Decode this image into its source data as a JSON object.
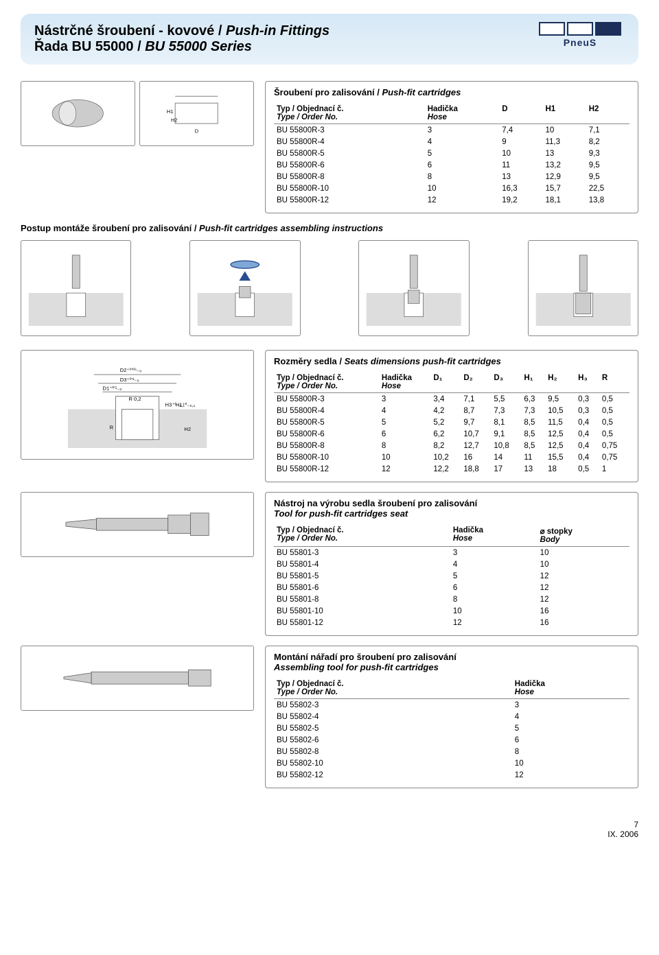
{
  "header": {
    "title_line1_cz": "Nástrčné šroubení - kovové / ",
    "title_line1_en": "Push-in Fittings",
    "title_line2_cz": "Řada BU 55000 / ",
    "title_line2_en": "BU 55000 Series",
    "logo_text": "PneuS"
  },
  "table1": {
    "title_cz": "Šroubení pro zalisování / ",
    "title_en": "Push-fit cartridges",
    "col_type_cz": "Typ / Objednací č.",
    "col_type_en": "Type / Order No.",
    "col_hose_cz": "Hadička",
    "col_hose_en": "Hose",
    "col_d": "D",
    "col_h1": "H1",
    "col_h2": "H2",
    "rows": [
      [
        "BU 55800R-3",
        "3",
        "7,4",
        "10",
        "7,1"
      ],
      [
        "BU 55800R-4",
        "4",
        "9",
        "11,3",
        "8,2"
      ],
      [
        "BU 55800R-5",
        "5",
        "10",
        "13",
        "9,3"
      ],
      [
        "BU 55800R-6",
        "6",
        "11",
        "13,2",
        "9,5"
      ],
      [
        "BU 55800R-8",
        "8",
        "13",
        "12,9",
        "9,5"
      ],
      [
        "BU 55800R-10",
        "10",
        "16,3",
        "15,7",
        "22,5"
      ],
      [
        "BU 55800R-12",
        "12",
        "19,2",
        "18,1",
        "13,8"
      ]
    ]
  },
  "assembly_title_cz": "Postup montáže šroubení pro zalisování / ",
  "assembly_title_en": "Push-fit cartridges assembling instructions",
  "table2": {
    "title_cz": "Rozměry sedla / ",
    "title_en": "Seats dimensions push-fit cartridges",
    "col_type_cz": "Typ / Objednací č.",
    "col_type_en": "Type / Order No.",
    "col_hose_cz": "Hadička",
    "col_hose_en": "Hose",
    "col_d1": "D₁",
    "col_d2": "D₂",
    "col_d3": "D₃",
    "col_h1": "H₁",
    "col_h2": "H₂",
    "col_h3": "H₃",
    "col_r": "R",
    "rows": [
      [
        "BU 55800R-3",
        "3",
        "3,4",
        "7,1",
        "5,5",
        "6,3",
        "9,5",
        "0,3",
        "0,5"
      ],
      [
        "BU 55800R-4",
        "4",
        "4,2",
        "8,7",
        "7,3",
        "7,3",
        "10,5",
        "0,3",
        "0,5"
      ],
      [
        "BU 55800R-5",
        "5",
        "5,2",
        "9,7",
        "8,1",
        "8,5",
        "11,5",
        "0,4",
        "0,5"
      ],
      [
        "BU 55800R-6",
        "6",
        "6,2",
        "10,7",
        "9,1",
        "8,5",
        "12,5",
        "0,4",
        "0,5"
      ],
      [
        "BU 55800R-8",
        "8",
        "8,2",
        "12,7",
        "10,8",
        "8,5",
        "12,5",
        "0,4",
        "0,75"
      ],
      [
        "BU 55800R-10",
        "10",
        "10,2",
        "16",
        "14",
        "11",
        "15,5",
        "0,4",
        "0,75"
      ],
      [
        "BU 55800R-12",
        "12",
        "12,2",
        "18,8",
        "17",
        "13",
        "18",
        "0,5",
        "1"
      ]
    ]
  },
  "seat_diagram": {
    "d2_tol": "D2⁺⁰'⁰⁵₋₀",
    "d3_tol": "D3⁺⁰'¹₋₀",
    "d1_tol": "D1⁺⁰'¹₋₀",
    "r02": "R 0,2",
    "h3_tol": "H3⁺⁰₋₀,₁",
    "h1_tol": "H1⁺⁰₋₀,₁",
    "h2": "H2",
    "r": "R"
  },
  "table3": {
    "title_cz": "Nástroj na výrobu sedla šroubení pro zalisování",
    "title_en": "Tool for push-fit cartridges seat",
    "col_type_cz": "Typ / Objednací č.",
    "col_type_en": "Type / Order No.",
    "col_hose_cz": "Hadička",
    "col_hose_en": "Hose",
    "col_body_cz": "⌀ stopky",
    "col_body_en": "Body",
    "rows": [
      [
        "BU 55801-3",
        "3",
        "10"
      ],
      [
        "BU 55801-4",
        "4",
        "10"
      ],
      [
        "BU 55801-5",
        "5",
        "12"
      ],
      [
        "BU 55801-6",
        "6",
        "12"
      ],
      [
        "BU 55801-8",
        "8",
        "12"
      ],
      [
        "BU 55801-10",
        "10",
        "16"
      ],
      [
        "BU 55801-12",
        "12",
        "16"
      ]
    ]
  },
  "table4": {
    "title_cz": "Montání nářadí pro šroubení pro zalisování",
    "title_en": "Assembling tool for push-fit cartridges",
    "col_type_cz": "Typ / Objednací č.",
    "col_type_en": "Type / Order No.",
    "col_hose_cz": "Hadička",
    "col_hose_en": "Hose",
    "rows": [
      [
        "BU 55802-3",
        "3"
      ],
      [
        "BU 55802-4",
        "4"
      ],
      [
        "BU 55802-5",
        "5"
      ],
      [
        "BU 55802-6",
        "6"
      ],
      [
        "BU 55802-8",
        "8"
      ],
      [
        "BU 55802-10",
        "10"
      ],
      [
        "BU 55802-12",
        "12"
      ]
    ]
  },
  "footer": {
    "page": "7",
    "date": "IX. 2006"
  },
  "colors": {
    "header_bg_top": "#d5e8f5",
    "header_bg_bottom": "#e8f2fa",
    "logo_navy": "#1b2f5a",
    "border": "#888888",
    "text": "#000000",
    "background": "#ffffff"
  }
}
